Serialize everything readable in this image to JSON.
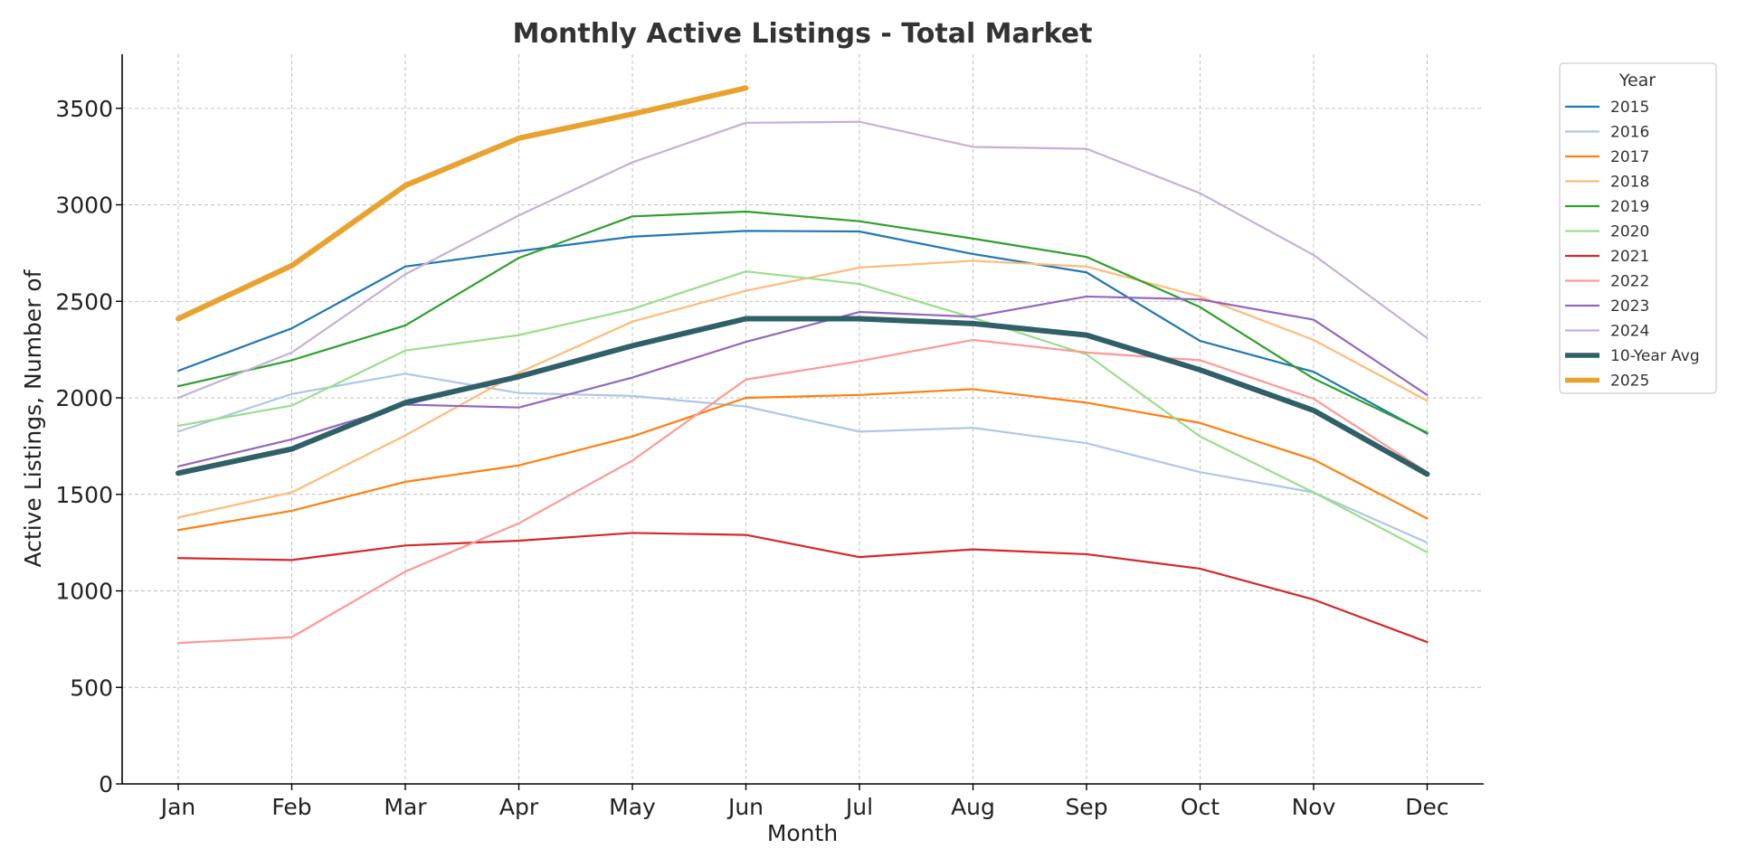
{
  "chart_data": {
    "type": "line",
    "title": "Monthly Active Listings - Total Market",
    "xlabel": "Month",
    "ylabel": "Active Listings, Number of",
    "categories": [
      "Jan",
      "Feb",
      "Mar",
      "Apr",
      "May",
      "Jun",
      "Jul",
      "Aug",
      "Sep",
      "Oct",
      "Nov",
      "Dec"
    ],
    "ylim": [
      0,
      3780
    ],
    "yticks": [
      0,
      500,
      1000,
      1500,
      2000,
      2500,
      3000,
      3500
    ],
    "grid": true,
    "legend": {
      "title": "Year",
      "placement": "outside-right"
    },
    "series": [
      {
        "name": "2015",
        "color": "#1f77b4",
        "style": "normal",
        "values": [
          2140,
          2360,
          2680,
          2760,
          2835,
          2865,
          2862,
          2745,
          2650,
          2295,
          2135,
          1815
        ]
      },
      {
        "name": "2016",
        "color": "#aec7e8",
        "style": "normal",
        "values": [
          1825,
          2020,
          2125,
          2025,
          2010,
          1955,
          1825,
          1845,
          1765,
          1615,
          1510,
          1250
        ]
      },
      {
        "name": "2017",
        "color": "#ff7f0e",
        "style": "normal",
        "values": [
          1315,
          1415,
          1565,
          1650,
          1800,
          2000,
          2015,
          2045,
          1975,
          1870,
          1680,
          1375
        ]
      },
      {
        "name": "2018",
        "color": "#ffbb78",
        "style": "normal",
        "values": [
          1380,
          1510,
          1805,
          2130,
          2395,
          2555,
          2675,
          2710,
          2680,
          2525,
          2300,
          1985
        ]
      },
      {
        "name": "2019",
        "color": "#2ca02c",
        "style": "normal",
        "values": [
          2060,
          2195,
          2375,
          2725,
          2940,
          2965,
          2915,
          2825,
          2730,
          2470,
          2100,
          1820
        ]
      },
      {
        "name": "2020",
        "color": "#98df8a",
        "style": "normal",
        "values": [
          1855,
          1960,
          2245,
          2325,
          2460,
          2655,
          2590,
          2415,
          2225,
          1800,
          1510,
          1200
        ]
      },
      {
        "name": "2021",
        "color": "#d62728",
        "style": "normal",
        "values": [
          1170,
          1160,
          1235,
          1260,
          1300,
          1290,
          1175,
          1215,
          1190,
          1115,
          955,
          735
        ]
      },
      {
        "name": "2022",
        "color": "#ff9896",
        "style": "normal",
        "values": [
          730,
          760,
          1100,
          1350,
          1675,
          2095,
          2190,
          2300,
          2235,
          2195,
          1995,
          1615
        ]
      },
      {
        "name": "2023",
        "color": "#9467bd",
        "style": "normal",
        "values": [
          1645,
          1785,
          1965,
          1950,
          2105,
          2290,
          2445,
          2420,
          2525,
          2510,
          2405,
          2015
        ]
      },
      {
        "name": "2024",
        "color": "#c5b0d5",
        "style": "normal",
        "values": [
          2000,
          2235,
          2640,
          2945,
          3220,
          3425,
          3430,
          3300,
          3290,
          3060,
          2740,
          2310
        ]
      },
      {
        "name": "10-Year Avg",
        "color": "#2f5f67",
        "style": "thick",
        "values": [
          1610,
          1735,
          1975,
          2110,
          2270,
          2410,
          2410,
          2385,
          2325,
          2145,
          1935,
          1605
        ]
      },
      {
        "name": "2025",
        "color": "#e9a22f",
        "style": "thick",
        "values": [
          2410,
          2685,
          3100,
          3345,
          3470,
          3605,
          null,
          null,
          null,
          null,
          null,
          null
        ]
      }
    ]
  }
}
